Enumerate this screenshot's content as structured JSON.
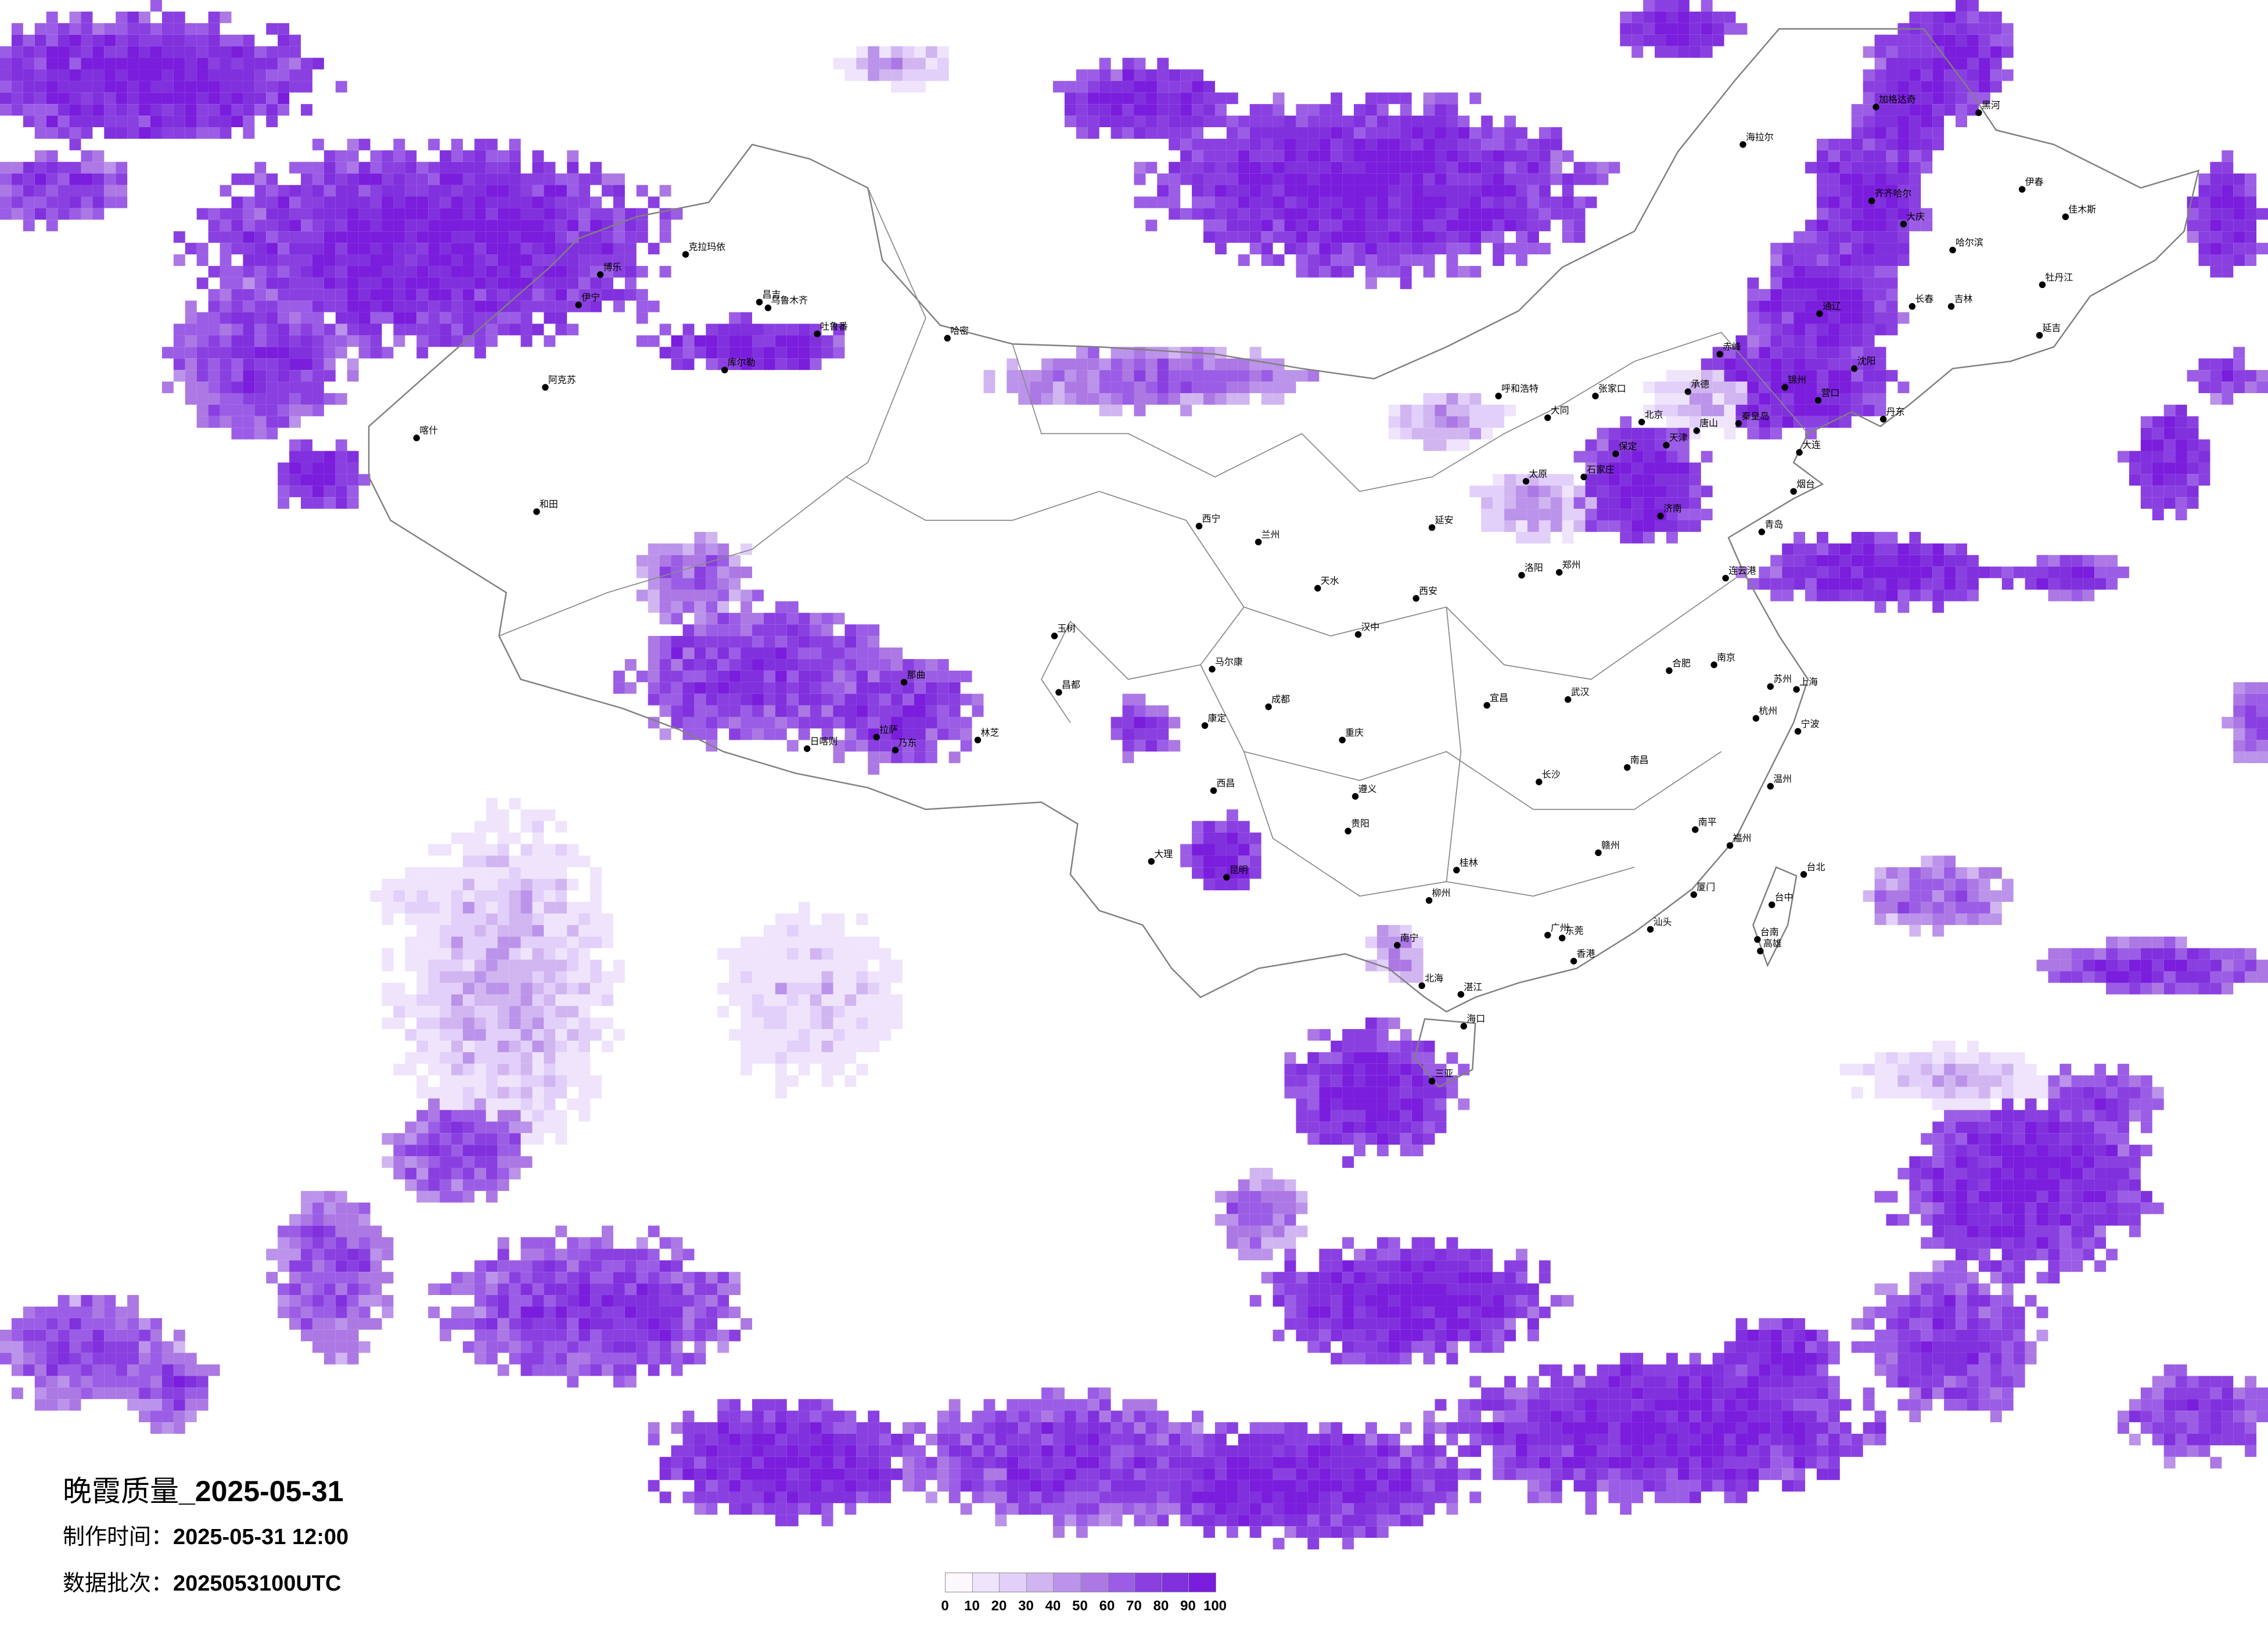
{
  "title": {
    "text": "晚霞质量",
    "date": "_2025-05-31"
  },
  "produce_time": {
    "label": "制作时间：",
    "value": "2025-05-31 12:00"
  },
  "data_batch": {
    "label": "数据批次：",
    "value": "2025053100UTC"
  },
  "legend": {
    "ticks": [
      "0",
      "10",
      "20",
      "30",
      "40",
      "50",
      "60",
      "70",
      "80",
      "90",
      "100"
    ],
    "colors": [
      "#fdf8fe",
      "#efe4fb",
      "#e2cffa",
      "#d1b5f0",
      "#bb93ea",
      "#ac78e4",
      "#9b5de5",
      "#8a40e0",
      "#8030dd",
      "#7a1ddd"
    ]
  },
  "map": {
    "border_color": "#808080",
    "cities": [
      "北京",
      "天津",
      "石家庄",
      "济南",
      "太原",
      "郑州",
      "呼和浩特",
      "青岛",
      "大连",
      "唐山",
      "保定",
      "张家口",
      "大同",
      "承德",
      "秦皇岛",
      "烟台",
      "连云港",
      "洛阳",
      "锦州",
      "营口",
      "乌鲁木齐",
      "昌吉",
      "克拉玛依",
      "博乐",
      "伊宁",
      "阿克苏",
      "和田",
      "库尔勒",
      "吐鲁番",
      "哈密",
      "喀什",
      "西宁",
      "兰州",
      "西安",
      "成都",
      "重庆",
      "贵阳",
      "昆明",
      "武汉",
      "长沙",
      "南昌",
      "大理",
      "西昌",
      "汉中",
      "宜昌",
      "遵义",
      "桂林",
      "延安",
      "天水",
      "马尔康",
      "康定",
      "南京",
      "上海",
      "杭州",
      "合肥",
      "苏州",
      "宁波",
      "福州",
      "厦门",
      "广州",
      "东莞",
      "香港",
      "台北",
      "台中",
      "台南",
      "高雄",
      "南宁",
      "汕头",
      "温州",
      "赣州",
      "南平",
      "湛江",
      "北海",
      "柳州",
      "海口",
      "三亚",
      "拉萨",
      "日喀则",
      "那曲",
      "林芝",
      "昌都",
      "玉树",
      "乃东",
      "哈尔滨",
      "长春",
      "沈阳",
      "齐齐哈尔",
      "海拉尔",
      "黑河",
      "大庆",
      "牡丹江",
      "吉林",
      "延吉",
      "丹东",
      "赤峰",
      "佳木斯",
      "伊春",
      "通辽",
      "加格达奇"
    ]
  }
}
